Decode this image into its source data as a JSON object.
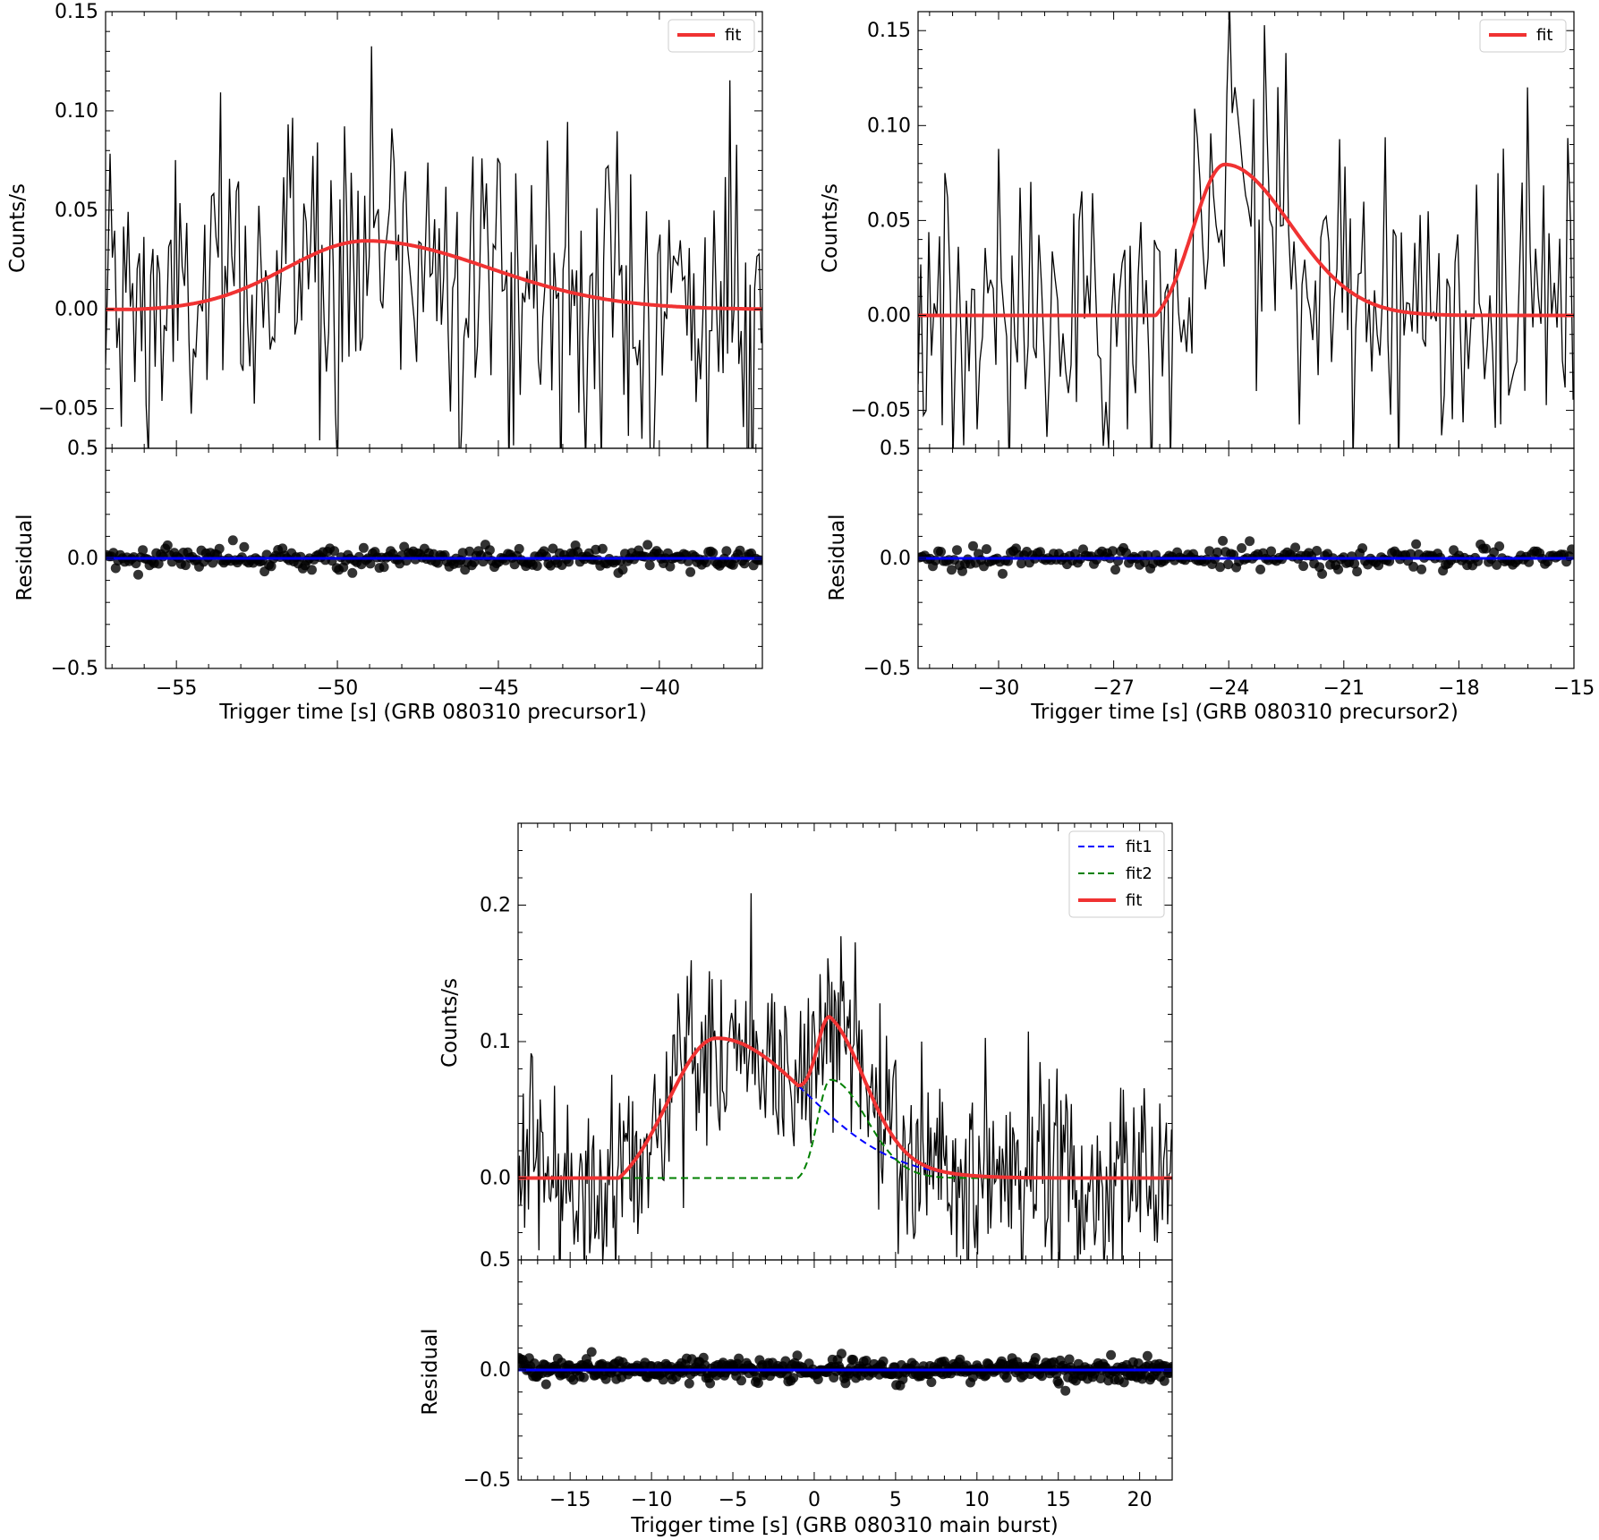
{
  "colors": {
    "fit": "#f03232",
    "fit1": "#0000ff",
    "fit2": "#008000",
    "data_line": "#000000",
    "residual_points": "#000000",
    "zero_line": "#0000ff"
  },
  "chart_data": [
    {
      "type": "line",
      "panel": "precursor1",
      "xlabel": "Trigger time [s] (GRB 080310 precursor1)",
      "xlim": [
        -57.2,
        -36.8
      ],
      "xticks": [
        -55,
        -50,
        -45,
        -40
      ],
      "xtick_labels": [
        "−55",
        "−50",
        "−45",
        "−40"
      ],
      "top": {
        "ylabel": "Counts/s",
        "ylim": [
          -0.07,
          0.15
        ],
        "yticks": [
          -0.05,
          0.0,
          0.05,
          0.1,
          0.15
        ],
        "ytick_labels": [
          "−0.05",
          "0.00",
          "0.05",
          "0.10",
          "0.15"
        ],
        "legend": [
          "fit"
        ],
        "legend_position": "top-right",
        "noise_sigma": 0.042,
        "components": [
          {
            "name": "fit",
            "style": "solid",
            "color": "#f03232",
            "t0": -56.3,
            "amp": 0.0345,
            "tpeak": -49.1,
            "sig_rise": 2.5,
            "sig_decay": 3.8
          }
        ]
      },
      "bottom": {
        "ylabel": "Residual",
        "ylim": [
          -0.5,
          0.5
        ],
        "yticks": [
          -0.5,
          0.0,
          0.5
        ],
        "ytick_labels": [
          "−0.5",
          "0.0",
          "0.5"
        ],
        "residual_sigma": 0.025
      }
    },
    {
      "type": "line",
      "panel": "precursor2",
      "xlabel": "Trigger time [s] (GRB 080310 precursor2)",
      "xlim": [
        -32.1,
        -15.0
      ],
      "xticks": [
        -30,
        -27,
        -24,
        -21,
        -18,
        -15
      ],
      "xtick_labels": [
        "−30",
        "−27",
        "−24",
        "−21",
        "−18",
        "−15"
      ],
      "top": {
        "ylabel": "Counts/s",
        "ylim": [
          -0.07,
          0.16
        ],
        "yticks": [
          -0.05,
          0.0,
          0.05,
          0.1,
          0.15
        ],
        "ytick_labels": [
          "−0.05",
          "0.00",
          "0.05",
          "0.10",
          "0.15"
        ],
        "legend": [
          "fit"
        ],
        "legend_position": "top-right",
        "noise_sigma": 0.038,
        "components": [
          {
            "name": "fit",
            "style": "solid",
            "color": "#f03232",
            "t0": -25.9,
            "amp": 0.0795,
            "tpeak": -24.1,
            "sig_rise": 0.85,
            "sig_decay": 1.7
          }
        ]
      },
      "bottom": {
        "ylabel": "Residual",
        "ylim": [
          -0.5,
          0.5
        ],
        "yticks": [
          -0.5,
          0.0,
          0.5
        ],
        "ytick_labels": [
          "−0.5",
          "0.0",
          "0.5"
        ],
        "residual_sigma": 0.025
      }
    },
    {
      "type": "line",
      "panel": "main burst",
      "xlabel": "Trigger time [s] (GRB 080310 main burst)",
      "xlim": [
        -18.2,
        22.0
      ],
      "xticks": [
        -15,
        -10,
        -5,
        0,
        5,
        10,
        15,
        20
      ],
      "xtick_labels": [
        "−15",
        "−10",
        "−5",
        "0",
        "5",
        "10",
        "15",
        "20"
      ],
      "top": {
        "ylabel": "Counts/s",
        "ylim": [
          -0.06,
          0.26
        ],
        "yticks": [
          0.0,
          0.1,
          0.2
        ],
        "ytick_labels": [
          "0.0",
          "0.1",
          "0.2"
        ],
        "legend": [
          "fit1",
          "fit2",
          "fit"
        ],
        "legend_position": "top-right",
        "noise_sigma": 0.038,
        "components": [
          {
            "name": "fit1",
            "style": "dashed",
            "color": "#0000ff",
            "t0": -12.0,
            "amp": 0.1025,
            "tpeak": -6.0,
            "sig_rise": 3.0,
            "sig_decay": 5.5
          },
          {
            "name": "fit2",
            "style": "dashed",
            "color": "#008000",
            "t0": -1.0,
            "amp": 0.072,
            "tpeak": 1.0,
            "sig_rise": 0.8,
            "sig_decay": 2.2
          },
          {
            "name": "fit",
            "style": "solid",
            "color": "#f03232",
            "sum_of": [
              "fit1",
              "fit2"
            ]
          }
        ]
      },
      "bottom": {
        "ylabel": "Residual",
        "ylim": [
          -0.5,
          0.5
        ],
        "yticks": [
          -0.5,
          0.0,
          0.5
        ],
        "ytick_labels": [
          "−0.5",
          "0.0",
          "0.5"
        ],
        "residual_sigma": 0.025
      }
    }
  ]
}
